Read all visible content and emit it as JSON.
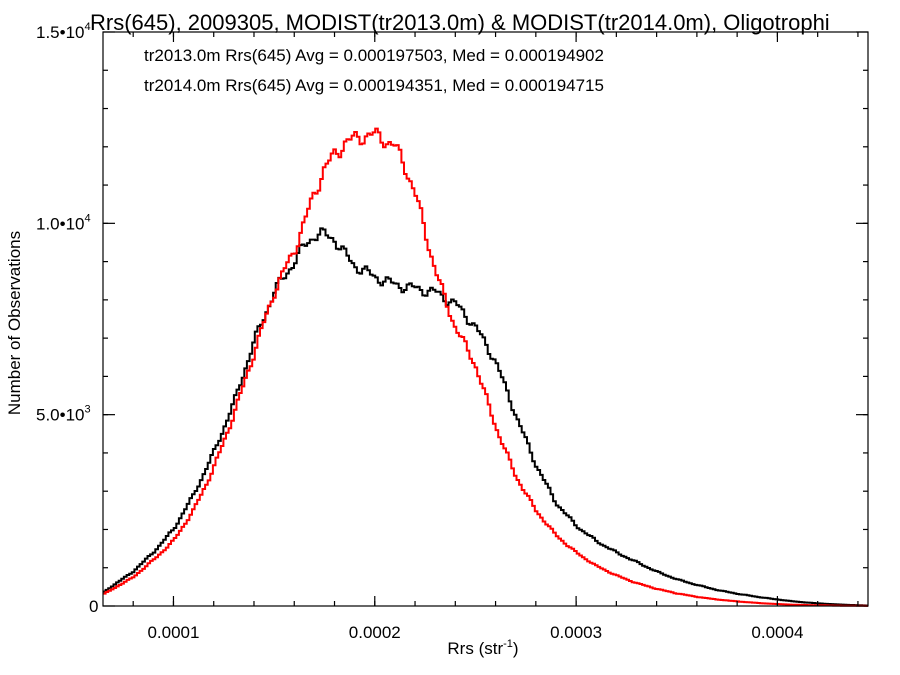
{
  "chart_data": {
    "type": "line",
    "title": "Rrs(645), 2009305, MODIST(tr2013.0m) & MODIST(tr2014.0m), Oligotrophi",
    "xlabel": "Rrs (str",
    "xlabel_sup": "-1",
    "xlabel_tail": ")",
    "ylabel": "Number of Observations",
    "xlim": [
      6.5e-05,
      0.000445
    ],
    "ylim": [
      0,
      15000
    ],
    "x_ticks": [
      {
        "value": 0.0001,
        "label": "0.0001"
      },
      {
        "value": 0.0002,
        "label": "0.0002"
      },
      {
        "value": 0.0003,
        "label": "0.0003"
      },
      {
        "value": 0.0004,
        "label": "0.0004"
      }
    ],
    "y_ticks": [
      {
        "value": 0,
        "mant": "0",
        "exp": ""
      },
      {
        "value": 5000,
        "mant": "5.0•10",
        "exp": "3"
      },
      {
        "value": 10000,
        "mant": "1.0•10",
        "exp": "4"
      },
      {
        "value": 15000,
        "mant": "1.5•10",
        "exp": "4"
      }
    ],
    "grid": false,
    "legend_position": "top-left",
    "series": [
      {
        "name": "tr2013.0m",
        "legend": "tr2013.0m Rrs(645) Avg = 0.000197503, Med = 0.000194902",
        "color": "#000000",
        "x": [
          6.5e-05,
          8e-05,
          9e-05,
          0.0001,
          0.00011,
          0.00012,
          0.00013,
          0.00014,
          0.00015,
          0.00016,
          0.000165,
          0.00017,
          0.000175,
          0.00018,
          0.000185,
          0.00019,
          0.0002,
          0.00021,
          0.00022,
          0.00023,
          0.00024,
          0.00025,
          0.00026,
          0.00027,
          0.00028,
          0.00029,
          0.0003,
          0.00031,
          0.00032,
          0.00033,
          0.00034,
          0.00035,
          0.00036,
          0.00037,
          0.00038,
          0.00039,
          0.0004,
          0.00041,
          0.00042,
          0.00043,
          0.00044,
          0.000445
        ],
        "y": [
          350,
          900,
          1400,
          2000,
          2900,
          4000,
          5300,
          6900,
          8200,
          9000,
          9400,
          9700,
          9700,
          9600,
          9200,
          8900,
          8600,
          8400,
          8300,
          8200,
          7900,
          7300,
          6400,
          5000,
          3700,
          2700,
          2100,
          1700,
          1400,
          1150,
          900,
          700,
          550,
          420,
          320,
          240,
          170,
          110,
          70,
          40,
          20,
          10
        ]
      },
      {
        "name": "tr2014.0m",
        "legend": "tr2014.0m Rrs(645) Avg = 0.000194351, Med = 0.000194715",
        "color": "#ff0000",
        "x": [
          6.5e-05,
          8e-05,
          9e-05,
          0.0001,
          0.00011,
          0.00012,
          0.00013,
          0.00014,
          0.00015,
          0.00016,
          0.000165,
          0.00017,
          0.000175,
          0.00018,
          0.000185,
          0.00019,
          0.000195,
          0.0002,
          0.000205,
          0.00021,
          0.000215,
          0.00022,
          0.000225,
          0.00023,
          0.000235,
          0.00024,
          0.00025,
          0.00026,
          0.00027,
          0.00028,
          0.00029,
          0.0003,
          0.00031,
          0.00032,
          0.00033,
          0.00034,
          0.00035,
          0.00036,
          0.00037,
          0.00038,
          0.00039,
          0.0004,
          0.00041,
          0.00042,
          0.00043,
          0.00044,
          0.000445
        ],
        "y": [
          300,
          750,
          1200,
          1700,
          2500,
          3600,
          5000,
          6600,
          8200,
          9300,
          10000,
          10800,
          11400,
          11800,
          12100,
          12200,
          12300,
          12300,
          12200,
          12000,
          11500,
          10800,
          9800,
          8800,
          8000,
          7300,
          6300,
          4700,
          3400,
          2500,
          1850,
          1400,
          1050,
          800,
          600,
          450,
          330,
          240,
          170,
          120,
          80,
          50,
          30,
          20,
          10,
          5,
          3
        ]
      }
    ]
  }
}
